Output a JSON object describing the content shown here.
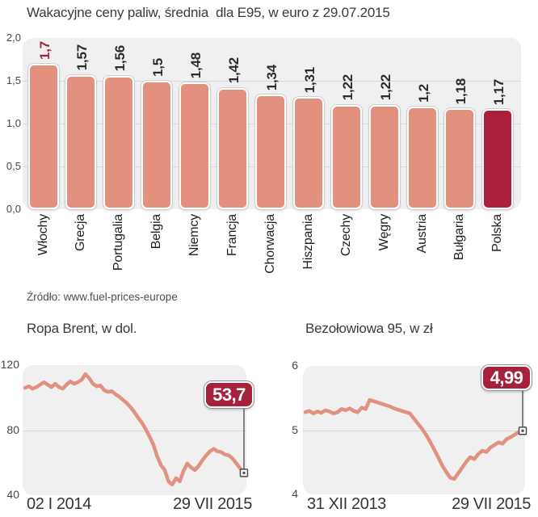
{
  "colors": {
    "bar_fill": "#E2917E",
    "line": "#E0917F",
    "highlight": "#AB203C",
    "badge_red": "#A6213C",
    "value_label_highlight": "#A6213C",
    "panel_bg": "#F0F0F1",
    "grid": "#D7D7D9"
  },
  "chart_data": [
    {
      "type": "bar",
      "title": "Wakacyjne ceny paliw, średnia  dla E95, w euro z 29.07.2015",
      "source": "Źródło: www.fuel-prices-europe",
      "categories": [
        "Włochy",
        "Grecja",
        "Portugalia",
        "Belgia",
        "Niemcy",
        "Francja",
        "Chorwacja",
        "Hiszpania",
        "Czechy",
        "Węgry",
        "Austria",
        "Bułgaria",
        "Polska"
      ],
      "values": [
        1.7,
        1.57,
        1.56,
        1.5,
        1.48,
        1.42,
        1.34,
        1.31,
        1.22,
        1.22,
        1.2,
        1.18,
        1.17
      ],
      "value_labels": [
        "1,7",
        "1,57",
        "1,56",
        "1,5",
        "1,48",
        "1,42",
        "1,34",
        "1,31",
        "1,22",
        "1,22",
        "1,2",
        "1,18",
        "1,17"
      ],
      "highlight_bar_index": 12,
      "highlight_value_index": 0,
      "ylim": [
        0,
        2
      ],
      "yticks": [
        "2,0",
        "1,5",
        "1,0",
        "0,5",
        "0,0"
      ],
      "grid": true,
      "legend": false
    },
    {
      "type": "line",
      "title": "Ropa Brent, w dol.",
      "ylim": [
        40,
        120
      ],
      "yticks": [
        120,
        80,
        40
      ],
      "x_start_label": "02 I 2014",
      "x_end_label": "29 VII 2015",
      "end_label": "53,7",
      "end_value": 53.7,
      "grid": true,
      "legend": false,
      "values": [
        106,
        107,
        105.5,
        106.5,
        108,
        109.5,
        108,
        106.5,
        108.5,
        106.5,
        105.5,
        108,
        110,
        108.5,
        109.5,
        111,
        114.5,
        112,
        108.5,
        107,
        107.5,
        104.5,
        103.5,
        104,
        102,
        100.5,
        98.5,
        96.5,
        94,
        91,
        87.5,
        84.5,
        80.5,
        76,
        71,
        64,
        58.5,
        55.5,
        48.5,
        46.5,
        50.5,
        48.5,
        55,
        59.5,
        57,
        55.5,
        58,
        61.5,
        64.5,
        67,
        68.5,
        67,
        66.5,
        65,
        64.5,
        62.5,
        59.5,
        56.5,
        53.7
      ]
    },
    {
      "type": "line",
      "title": "Bezołowiowa 95, w zł",
      "ylim": [
        4,
        6
      ],
      "yticks": [
        6,
        5,
        4
      ],
      "x_start_label": "31 XII 2013",
      "x_end_label": "29 VII 2015",
      "end_label": "4,99",
      "end_value": 4.99,
      "grid": true,
      "legend": false,
      "values": [
        5.28,
        5.3,
        5.26,
        5.29,
        5.27,
        5.31,
        5.29,
        5.26,
        5.28,
        5.33,
        5.31,
        5.34,
        5.3,
        5.28,
        5.35,
        5.33,
        5.47,
        5.45,
        5.43,
        5.41,
        5.39,
        5.37,
        5.34,
        5.32,
        5.3,
        5.28,
        5.26,
        5.18,
        5.1,
        5.02,
        4.93,
        4.82,
        4.7,
        4.58,
        4.45,
        4.35,
        4.26,
        4.24,
        4.33,
        4.42,
        4.51,
        4.58,
        4.55,
        4.63,
        4.68,
        4.66,
        4.73,
        4.77,
        4.81,
        4.79,
        4.86,
        4.89,
        4.93,
        4.97,
        4.99
      ]
    }
  ]
}
